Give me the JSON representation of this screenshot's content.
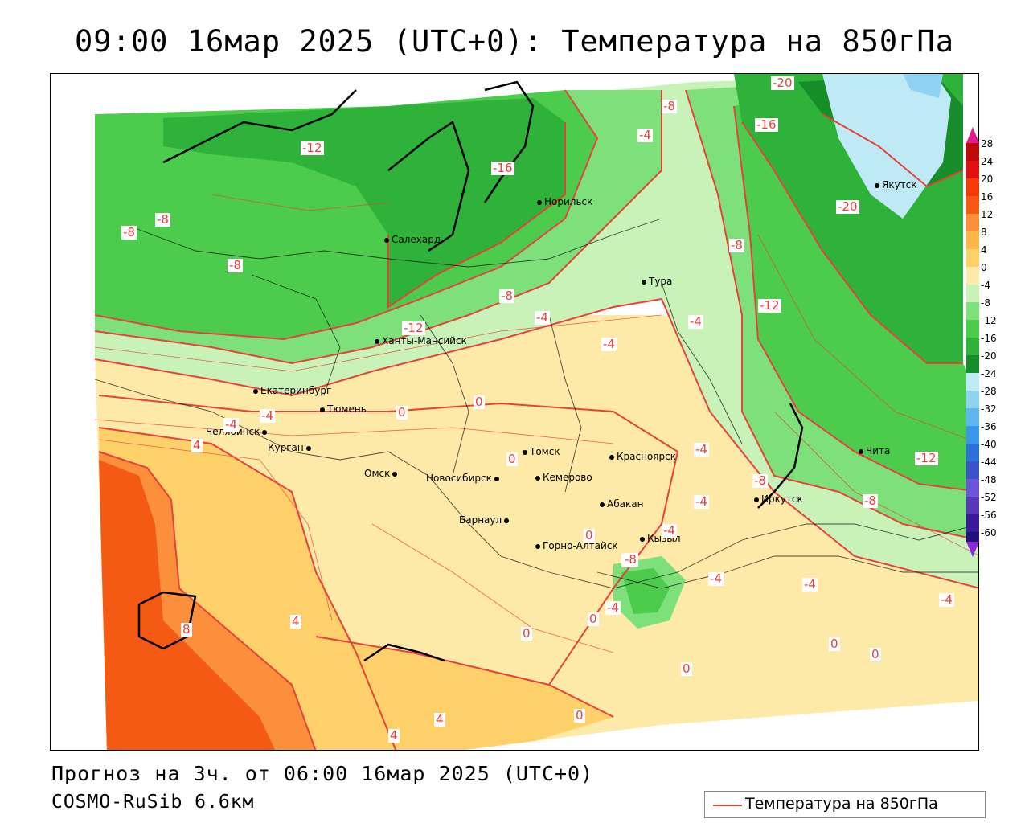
{
  "title": "09:00 16мар 2025 (UTC+0): Температура на 850гПа",
  "footer": {
    "forecast": "Прогноз на 3ч. от 06:00 16мар 2025 (UTC+0)",
    "model": "COSMO-RuSib 6.6км"
  },
  "legend": {
    "label": "Температура на 850гПа",
    "line_color": "#e8413c"
  },
  "colorbar": {
    "ticks": [
      "28",
      "24",
      "20",
      "16",
      "12",
      "8",
      "4",
      "0",
      "-4",
      "-8",
      "-12",
      "-16",
      "-20",
      "-24",
      "-28",
      "-32",
      "-36",
      "-40",
      "-44",
      "-48",
      "-52",
      "-56",
      "-60"
    ]
  },
  "cities": [
    {
      "name": "Якутск"
    },
    {
      "name": "Норильск"
    },
    {
      "name": "Салехард"
    },
    {
      "name": "Тура"
    },
    {
      "name": "Ханты-Мансийск"
    },
    {
      "name": "Екатеринбург"
    },
    {
      "name": "Тюмень"
    },
    {
      "name": "Челябинск"
    },
    {
      "name": "Курган"
    },
    {
      "name": "Омск"
    },
    {
      "name": "Томск"
    },
    {
      "name": "Красноярск"
    },
    {
      "name": "Новосибирск"
    },
    {
      "name": "Кемерово"
    },
    {
      "name": "Абакан"
    },
    {
      "name": "Барнаул"
    },
    {
      "name": "Горно-Алтайск"
    },
    {
      "name": "Кызыл"
    },
    {
      "name": "Иркутск"
    },
    {
      "name": "Чита"
    }
  ],
  "contour_labels": [
    "-20",
    "-20",
    "-16",
    "-8",
    "-4",
    "-12",
    "-16",
    "-8",
    "-8",
    "-8",
    "-8",
    "-12",
    "-8",
    "-12",
    "-4",
    "-4",
    "-4",
    "-4",
    "-4",
    "0",
    "0",
    "-4",
    "0",
    "4",
    "0",
    "-4",
    "-8",
    "-12",
    "-8",
    "-4",
    "-8",
    "-4",
    "-4",
    "0",
    "-4",
    "0",
    "0",
    "4",
    "0",
    "0",
    "0",
    "4",
    "4",
    "8",
    "-8",
    "-4",
    "-4"
  ]
}
